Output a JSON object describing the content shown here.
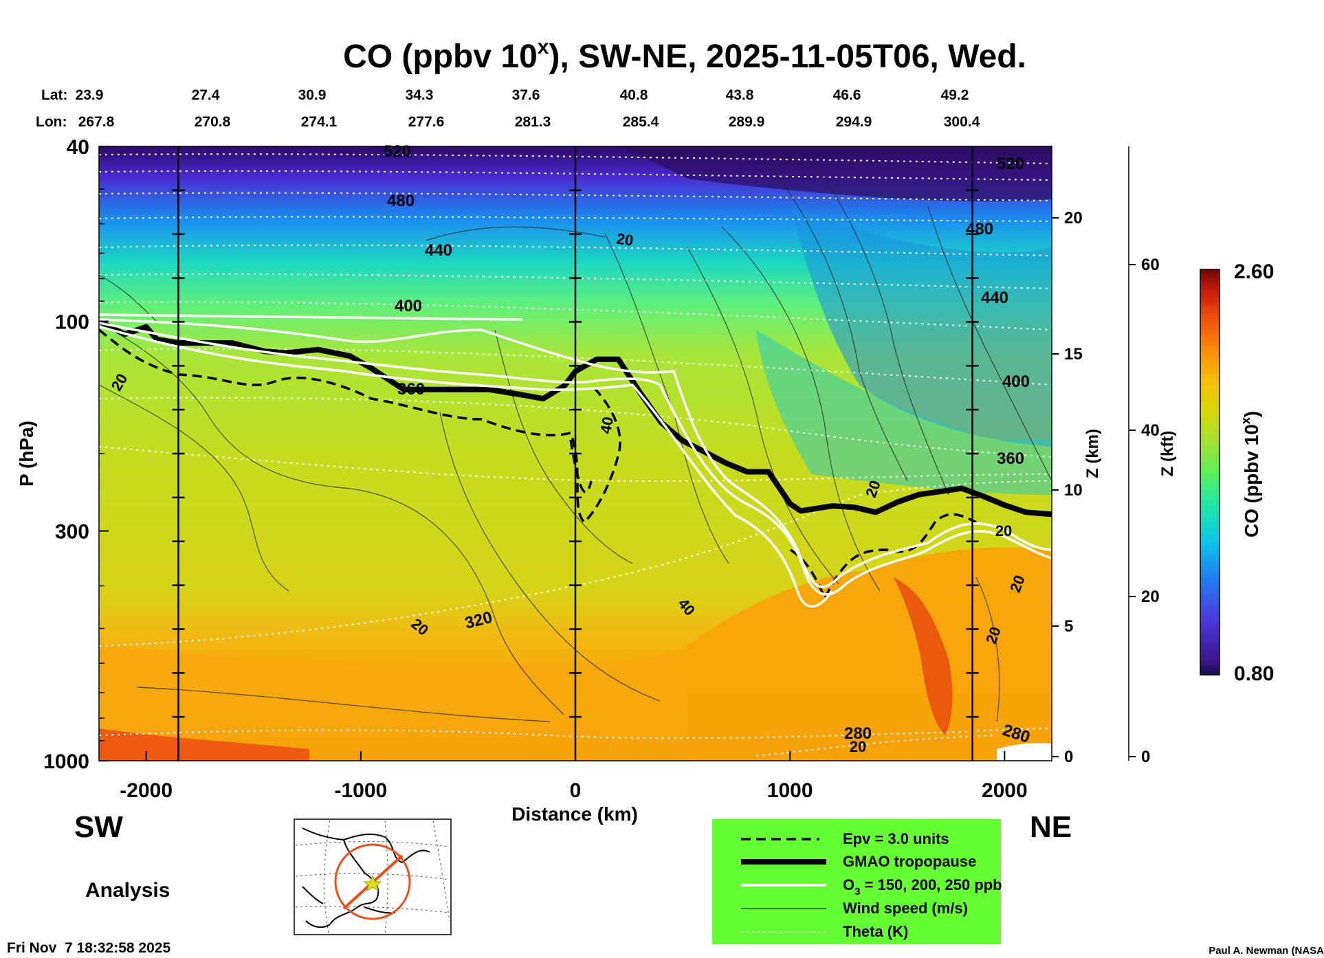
{
  "title": {
    "main": "CO (ppbv 10",
    "sup": "x",
    "rest": "), SW-NE, 2025-11-05T06, Wed."
  },
  "coords": {
    "lat_label": "Lat:",
    "lon_label": "Lon:",
    "lat": [
      "23.9",
      "27.4",
      "30.9",
      "34.3",
      "37.6",
      "40.8",
      "43.8",
      "46.6",
      "49.2"
    ],
    "lon": [
      "267.8",
      "270.8",
      "274.1",
      "277.6",
      "281.3",
      "285.4",
      "289.9",
      "294.9",
      "300.4"
    ]
  },
  "axes": {
    "ylabel": "P (hPa)",
    "xlabel": "Distance (km)",
    "zkm_label": "Z (km)",
    "zkft_label": "Z (kft)",
    "y_ticks": [
      "40",
      "100",
      "300",
      "1000"
    ],
    "x_ticks": [
      "-2000",
      "-1000",
      "0",
      "1000",
      "2000"
    ],
    "zkm_ticks": [
      "20",
      "15",
      "10",
      "5",
      "0"
    ],
    "zkft_ticks": [
      "60",
      "40",
      "20",
      "0"
    ]
  },
  "direction": {
    "left": "SW",
    "right": "NE"
  },
  "analysis_label": "Analysis",
  "timestamp": "Fri Nov  7 18:32:58 2025",
  "credit": "Paul A. Newman (NASA",
  "colorbar": {
    "label_main": "CO (ppbv 10",
    "label_sup": "x",
    "label_rest": ")",
    "max": "2.60",
    "min": "0.80"
  },
  "legend": {
    "items": [
      {
        "label": "Epv = 3.0 units"
      },
      {
        "label": "GMAO tropopause"
      },
      {
        "label": "O",
        "sub": "3",
        "rest": " = 150, 200, 250 ppb"
      },
      {
        "label": "Wind speed (m/s)"
      },
      {
        "label": "Theta (K)"
      }
    ],
    "background": "#66ff33"
  },
  "contour_labels": {
    "theta": [
      "520",
      "480",
      "440",
      "400",
      "360",
      "320",
      "280",
      "520",
      "480",
      "440",
      "400",
      "360",
      "280"
    ],
    "wind": [
      "20",
      "20",
      "40",
      "20",
      "40",
      "20",
      "20",
      "20",
      "20",
      "20"
    ]
  },
  "chart_data": {
    "type": "heatmap",
    "title": "CO (ppbv 10^x), SW-NE, 2025-11-05T06, Wed.",
    "xlabel": "Distance (km)",
    "ylabel": "P (hPa)",
    "xlim": [
      -2220,
      2220
    ],
    "ylim": [
      1000,
      40
    ],
    "y_scale": "log",
    "colorbar_range": [
      0.8,
      2.6
    ],
    "x_markers": [
      -1850,
      0,
      1850
    ],
    "tropopause": {
      "x": [
        -2220,
        -2100,
        -2000,
        -1950,
        -1850,
        -1600,
        -1450,
        -1350,
        -1200,
        -1050,
        -950,
        -800,
        -600,
        -400,
        -250,
        -150,
        -50,
        0,
        100,
        200,
        300,
        400,
        500,
        600,
        700,
        800,
        900,
        1000,
        1050,
        1200,
        1300,
        1400,
        1500,
        1600,
        1700,
        1800,
        1900,
        2000,
        2100,
        2220
      ],
      "p": [
        100,
        107,
        103,
        110,
        112,
        112,
        117,
        118,
        116,
        120,
        128,
        143,
        143,
        143,
        147,
        150,
        140,
        130,
        122,
        122,
        145,
        170,
        187,
        198,
        210,
        220,
        220,
        260,
        270,
        263,
        265,
        272,
        258,
        248,
        244,
        240,
        250,
        262,
        272,
        275
      ]
    },
    "theta_levels": [
      280,
      320,
      360,
      400,
      440,
      480,
      520
    ],
    "wind_levels": [
      20,
      40
    ],
    "o3_levels": [
      150,
      200,
      250
    ],
    "epv_level": 3.0
  }
}
